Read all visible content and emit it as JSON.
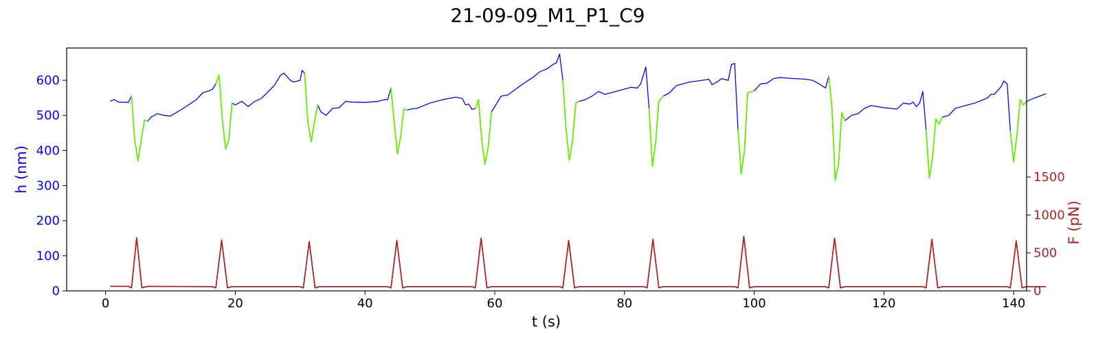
{
  "chart_data": {
    "type": "line",
    "title": "21-09-09_M1_P1_C9",
    "xlabel": "t (s)",
    "ylabel_left": "h (nm)",
    "ylabel_right": "F (pN)",
    "xlim": [
      -6,
      142
    ],
    "ylim_left": [
      0,
      692
    ],
    "ylim_right": [
      0,
      3200
    ],
    "x_ticks": [
      0,
      20,
      40,
      60,
      80,
      100,
      120,
      140
    ],
    "y_ticks_left": [
      0,
      100,
      200,
      300,
      400,
      500,
      600
    ],
    "y_ticks_right": [
      0,
      500,
      1000,
      1500
    ],
    "grid": false,
    "colors": {
      "height_baseline": "#0000ff",
      "height_compression": "#66ee00",
      "force": "#b22222",
      "left_axis_text": "#0000ff",
      "right_axis_text": "#b22222"
    },
    "series": [
      {
        "axis": "left",
        "points": [
          [
            0.7,
            540
          ],
          [
            1.3,
            545
          ],
          [
            2.0,
            538
          ],
          [
            3.5,
            537
          ],
          [
            4.0,
            555
          ],
          [
            4.5,
            430
          ],
          [
            5.0,
            370
          ],
          [
            5.5,
            430
          ],
          [
            6.0,
            487
          ],
          [
            6.5,
            483
          ],
          [
            7.0,
            495
          ],
          [
            8.0,
            505
          ],
          [
            9.0,
            500
          ],
          [
            10.0,
            498
          ],
          [
            12.0,
            520
          ],
          [
            14.0,
            545
          ],
          [
            15.0,
            565
          ],
          [
            16.0,
            570
          ],
          [
            16.5,
            575
          ],
          [
            17.0,
            590
          ],
          [
            17.5,
            615
          ],
          [
            18.0,
            490
          ],
          [
            18.5,
            405
          ],
          [
            19.0,
            430
          ],
          [
            19.5,
            535
          ],
          [
            20.0,
            530
          ],
          [
            21.0,
            540
          ],
          [
            22.0,
            525
          ],
          [
            23.0,
            540
          ],
          [
            24.0,
            548
          ],
          [
            26.0,
            585
          ],
          [
            27.0,
            615
          ],
          [
            27.5,
            620
          ],
          [
            28.0,
            610
          ],
          [
            28.5,
            600
          ],
          [
            29.0,
            595
          ],
          [
            30.0,
            600
          ],
          [
            30.3,
            628
          ],
          [
            30.7,
            620
          ],
          [
            31.2,
            480
          ],
          [
            31.7,
            425
          ],
          [
            32.2,
            480
          ],
          [
            32.7,
            530
          ],
          [
            33.2,
            510
          ],
          [
            34.0,
            500
          ],
          [
            35.0,
            520
          ],
          [
            36.0,
            522
          ],
          [
            37.0,
            540
          ],
          [
            38.0,
            538
          ],
          [
            40.0,
            537
          ],
          [
            42.0,
            540
          ],
          [
            43.0,
            545
          ],
          [
            43.5,
            545
          ],
          [
            44.0,
            578
          ],
          [
            44.5,
            480
          ],
          [
            45.0,
            390
          ],
          [
            45.5,
            440
          ],
          [
            46.0,
            518
          ],
          [
            46.5,
            515
          ],
          [
            47.0,
            518
          ],
          [
            48.0,
            520
          ],
          [
            50.0,
            535
          ],
          [
            52.0,
            545
          ],
          [
            54.0,
            552
          ],
          [
            55.0,
            548
          ],
          [
            55.5,
            530
          ],
          [
            56.0,
            532
          ],
          [
            56.5,
            517
          ],
          [
            57.0,
            520
          ],
          [
            57.5,
            545
          ],
          [
            58.0,
            430
          ],
          [
            58.5,
            360
          ],
          [
            59.0,
            410
          ],
          [
            59.5,
            510
          ],
          [
            60.0,
            525
          ],
          [
            61.0,
            555
          ],
          [
            62.0,
            558
          ],
          [
            64.0,
            585
          ],
          [
            66.0,
            610
          ],
          [
            67.0,
            625
          ],
          [
            68.0,
            632
          ],
          [
            69.0,
            645
          ],
          [
            69.5,
            650
          ],
          [
            70.0,
            675
          ],
          [
            70.5,
            600
          ],
          [
            71.0,
            460
          ],
          [
            71.5,
            372
          ],
          [
            72.0,
            430
          ],
          [
            72.5,
            535
          ],
          [
            73.0,
            540
          ],
          [
            74.0,
            545
          ],
          [
            75.0,
            555
          ],
          [
            76.0,
            568
          ],
          [
            77.0,
            560
          ],
          [
            78.0,
            565
          ],
          [
            80.0,
            575
          ],
          [
            81.0,
            580
          ],
          [
            82.0,
            578
          ],
          [
            82.5,
            590
          ],
          [
            83.0,
            620
          ],
          [
            83.3,
            638
          ],
          [
            83.8,
            520
          ],
          [
            84.3,
            355
          ],
          [
            84.8,
            420
          ],
          [
            85.3,
            540
          ],
          [
            86.0,
            555
          ],
          [
            87.0,
            565
          ],
          [
            88.0,
            585
          ],
          [
            89.0,
            590
          ],
          [
            90.0,
            595
          ],
          [
            92.0,
            600
          ],
          [
            93.0,
            603
          ],
          [
            93.5,
            588
          ],
          [
            94.0,
            592
          ],
          [
            95.0,
            605
          ],
          [
            96.0,
            600
          ],
          [
            96.5,
            645
          ],
          [
            97.0,
            648
          ],
          [
            97.5,
            460
          ],
          [
            98.0,
            333
          ],
          [
            98.5,
            400
          ],
          [
            99.0,
            565
          ],
          [
            100.0,
            570
          ],
          [
            101.0,
            590
          ],
          [
            102.0,
            592
          ],
          [
            103.0,
            605
          ],
          [
            104.0,
            608
          ],
          [
            106.0,
            605
          ],
          [
            108.0,
            603
          ],
          [
            109.0,
            600
          ],
          [
            110.0,
            590
          ],
          [
            111.0,
            578
          ],
          [
            111.5,
            612
          ],
          [
            112.0,
            520
          ],
          [
            112.5,
            315
          ],
          [
            113.0,
            360
          ],
          [
            113.5,
            508
          ],
          [
            114.0,
            485
          ],
          [
            115.0,
            500
          ],
          [
            116.0,
            505
          ],
          [
            117.0,
            520
          ],
          [
            118.0,
            528
          ],
          [
            120.0,
            522
          ],
          [
            122.0,
            518
          ],
          [
            123.0,
            535
          ],
          [
            124.0,
            532
          ],
          [
            124.5,
            538
          ],
          [
            125.0,
            525
          ],
          [
            125.5,
            535
          ],
          [
            126.0,
            568
          ],
          [
            126.5,
            460
          ],
          [
            127.0,
            322
          ],
          [
            127.5,
            380
          ],
          [
            128.0,
            490
          ],
          [
            128.5,
            475
          ],
          [
            129.0,
            495
          ],
          [
            130.0,
            500
          ],
          [
            131.0,
            520
          ],
          [
            132.0,
            525
          ],
          [
            134.0,
            535
          ],
          [
            136.0,
            550
          ],
          [
            136.5,
            560
          ],
          [
            137.0,
            560
          ],
          [
            138.0,
            580
          ],
          [
            138.5,
            598
          ],
          [
            139.0,
            590
          ],
          [
            139.5,
            455
          ],
          [
            140.0,
            368
          ],
          [
            140.5,
            440
          ],
          [
            141.0,
            545
          ],
          [
            141.5,
            530
          ],
          [
            142.0,
            540
          ],
          [
            143.0,
            548
          ],
          [
            144.0,
            555
          ],
          [
            145.0,
            562
          ]
        ]
      },
      {
        "axis": "right",
        "points": [
          [
            0.7,
            60
          ],
          [
            3.5,
            60
          ],
          [
            4.0,
            40
          ],
          [
            4.8,
            700
          ],
          [
            5.6,
            40
          ],
          [
            6.5,
            60
          ],
          [
            16.5,
            55
          ],
          [
            17.0,
            40
          ],
          [
            17.9,
            670
          ],
          [
            18.8,
            40
          ],
          [
            19.5,
            55
          ],
          [
            30.0,
            55
          ],
          [
            30.5,
            40
          ],
          [
            31.4,
            650
          ],
          [
            32.3,
            40
          ],
          [
            33.0,
            55
          ],
          [
            43.5,
            55
          ],
          [
            44.0,
            40
          ],
          [
            44.9,
            665
          ],
          [
            45.8,
            40
          ],
          [
            46.5,
            55
          ],
          [
            56.5,
            55
          ],
          [
            57.0,
            40
          ],
          [
            57.9,
            695
          ],
          [
            58.8,
            40
          ],
          [
            59.5,
            55
          ],
          [
            70.0,
            55
          ],
          [
            70.5,
            40
          ],
          [
            71.4,
            665
          ],
          [
            72.3,
            40
          ],
          [
            73.0,
            55
          ],
          [
            83.0,
            55
          ],
          [
            83.5,
            40
          ],
          [
            84.4,
            680
          ],
          [
            85.3,
            40
          ],
          [
            86.0,
            55
          ],
          [
            97.0,
            55
          ],
          [
            97.5,
            40
          ],
          [
            98.4,
            720
          ],
          [
            99.3,
            40
          ],
          [
            100.0,
            55
          ],
          [
            111.0,
            55
          ],
          [
            111.5,
            40
          ],
          [
            112.4,
            695
          ],
          [
            113.3,
            40
          ],
          [
            114.0,
            55
          ],
          [
            126.0,
            55
          ],
          [
            126.5,
            40
          ],
          [
            127.4,
            680
          ],
          [
            128.3,
            40
          ],
          [
            129.0,
            55
          ],
          [
            139.0,
            55
          ],
          [
            139.5,
            40
          ],
          [
            140.4,
            660
          ],
          [
            141.3,
            40
          ],
          [
            142.0,
            55
          ],
          [
            145.0,
            55
          ]
        ]
      }
    ]
  }
}
